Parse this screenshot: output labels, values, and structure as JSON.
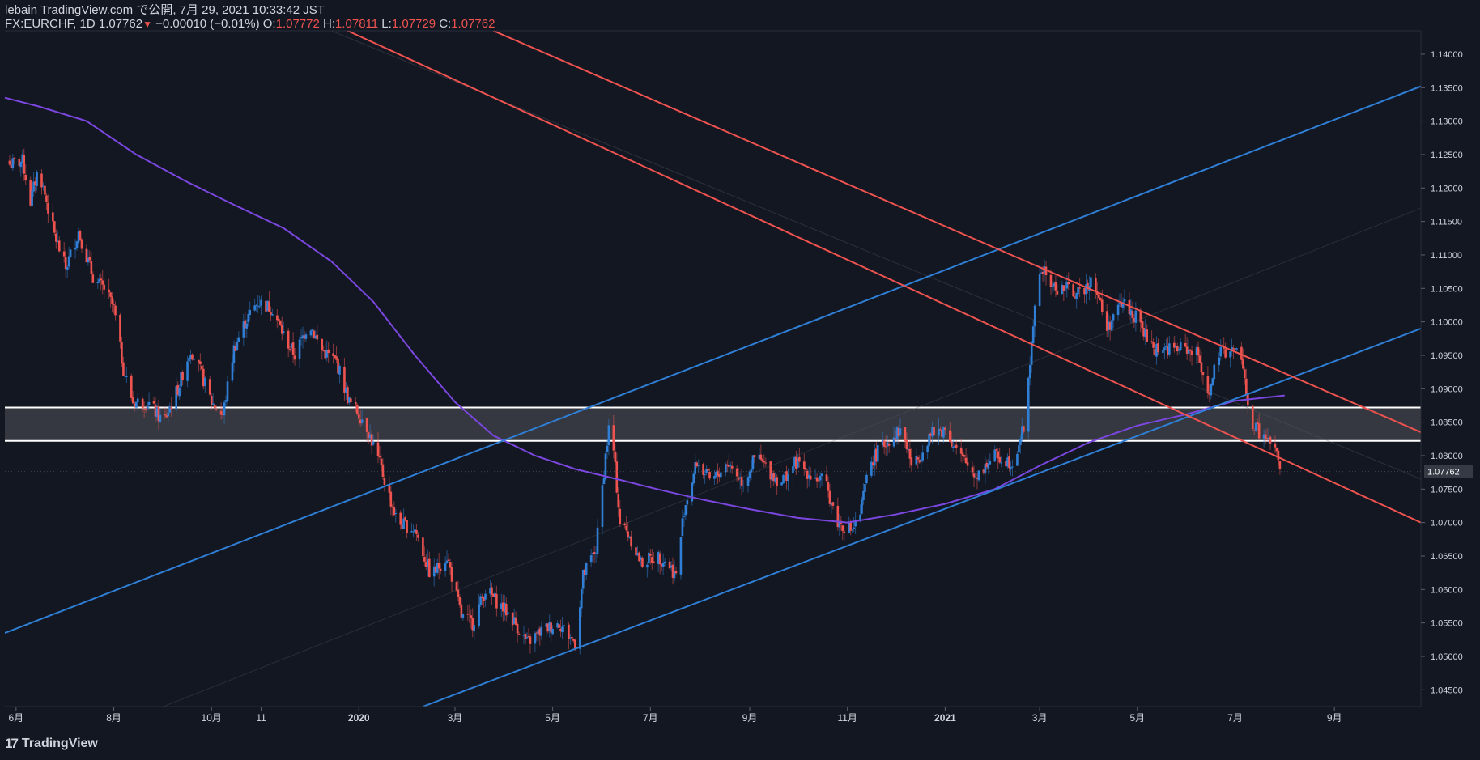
{
  "header": {
    "publisher_line": "lebain TradingView.com で公開, 7月 29, 2021 10:33:42 JST",
    "symbol": "FX:EURCHF, 1D",
    "last": "1.07762",
    "change": "−0.00010 (−0.01%)",
    "o_label": "O:",
    "o_value": "1.07772",
    "h_label": "H:",
    "h_value": "1.07811",
    "l_label": "L:",
    "l_value": "1.07729",
    "c_label": "C:",
    "c_value": "1.07762"
  },
  "footer": {
    "brand": "TradingView",
    "logo_glyph": "17"
  },
  "colors": {
    "background": "#131722",
    "up": "#2f7fd6",
    "down": "#ef5350",
    "ma": "#7b47e0",
    "trend_blue": "#2f7fd6",
    "trend_red": "#ef5350",
    "zone_fill": "#3a3c44",
    "zone_line": "#ffffff",
    "axis_text": "#d1d4dc",
    "price_tag_bg": "#363a45"
  },
  "chart_data": {
    "type": "candlestick",
    "symbol": "FX:EURCHF",
    "interval": "1D",
    "ylim": [
      1.0425,
      1.1435
    ],
    "y_ticks": [
      1.045,
      1.05,
      1.055,
      1.06,
      1.065,
      1.07,
      1.075,
      1.08,
      1.085,
      1.09,
      1.095,
      1.1,
      1.105,
      1.11,
      1.115,
      1.12,
      1.125,
      1.13,
      1.135,
      1.14
    ],
    "y_tick_labels": [
      "1.04500",
      "1.05000",
      "1.05500",
      "1.06000",
      "1.06500",
      "1.07000",
      "1.07500",
      "1.08000",
      "1.08500",
      "1.09000",
      "1.09500",
      "1.10000",
      "1.10500",
      "1.11000",
      "1.11500",
      "1.12000",
      "1.12500",
      "1.13000",
      "1.13500",
      "1.14000"
    ],
    "x_domain": [
      "2019-05-25",
      "2021-10-25"
    ],
    "x_ticks": [
      {
        "date": "2019-06-01",
        "label": "6月"
      },
      {
        "date": "2019-08-01",
        "label": "8月"
      },
      {
        "date": "2019-10-01",
        "label": "10月"
      },
      {
        "date": "2019-11-01",
        "label": "11"
      },
      {
        "date": "2020-01-01",
        "label": "2020"
      },
      {
        "date": "2020-03-01",
        "label": "3月"
      },
      {
        "date": "2020-05-01",
        "label": "5月"
      },
      {
        "date": "2020-07-01",
        "label": "7月"
      },
      {
        "date": "2020-09-01",
        "label": "9月"
      },
      {
        "date": "2020-11-01",
        "label": "11月"
      },
      {
        "date": "2021-01-01",
        "label": "2021"
      },
      {
        "date": "2021-03-01",
        "label": "3月"
      },
      {
        "date": "2021-05-01",
        "label": "5月"
      },
      {
        "date": "2021-07-01",
        "label": "7月"
      },
      {
        "date": "2021-09-01",
        "label": "9月"
      }
    ],
    "last_price": 1.07762,
    "last_price_label": "1.07762",
    "price_path": [
      [
        "2019-05-28",
        1.1235
      ],
      [
        "2019-06-05",
        1.124
      ],
      [
        "2019-06-10",
        1.118
      ],
      [
        "2019-06-15",
        1.123
      ],
      [
        "2019-06-25",
        1.113
      ],
      [
        "2019-07-02",
        1.108
      ],
      [
        "2019-07-10",
        1.1135
      ],
      [
        "2019-07-20",
        1.106
      ],
      [
        "2019-07-26",
        1.105
      ],
      [
        "2019-08-01",
        1.102
      ],
      [
        "2019-08-07",
        1.093
      ],
      [
        "2019-08-13",
        1.088
      ],
      [
        "2019-08-22",
        1.088
      ],
      [
        "2019-09-01",
        1.085
      ],
      [
        "2019-09-10",
        1.09
      ],
      [
        "2019-09-18",
        1.096
      ],
      [
        "2019-09-25",
        1.092
      ],
      [
        "2019-10-01",
        1.088
      ],
      [
        "2019-10-08",
        1.086
      ],
      [
        "2019-10-15",
        1.096
      ],
      [
        "2019-10-22",
        1.1
      ],
      [
        "2019-10-30",
        1.103
      ],
      [
        "2019-11-08",
        1.102
      ],
      [
        "2019-11-15",
        1.098
      ],
      [
        "2019-11-22",
        1.095
      ],
      [
        "2019-12-01",
        1.1
      ],
      [
        "2019-12-08",
        1.096
      ],
      [
        "2019-12-18",
        1.094
      ],
      [
        "2019-12-26",
        1.088
      ],
      [
        "2020-01-05",
        1.085
      ],
      [
        "2020-01-15",
        1.078
      ],
      [
        "2020-01-25",
        1.07
      ],
      [
        "2020-02-05",
        1.069
      ],
      [
        "2020-02-15",
        1.062
      ],
      [
        "2020-02-25",
        1.065
      ],
      [
        "2020-03-05",
        1.056
      ],
      [
        "2020-03-12",
        1.055
      ],
      [
        "2020-03-20",
        1.06
      ],
      [
        "2020-03-28",
        1.058
      ],
      [
        "2020-04-05",
        1.056
      ],
      [
        "2020-04-15",
        1.052
      ],
      [
        "2020-04-25",
        1.054
      ],
      [
        "2020-05-05",
        1.055
      ],
      [
        "2020-05-15",
        1.052
      ],
      [
        "2020-05-20",
        1.062
      ],
      [
        "2020-05-28",
        1.066
      ],
      [
        "2020-06-03",
        1.08
      ],
      [
        "2020-06-06",
        1.086
      ],
      [
        "2020-06-12",
        1.07
      ],
      [
        "2020-06-18",
        1.068
      ],
      [
        "2020-06-25",
        1.064
      ],
      [
        "2020-07-05",
        1.065
      ],
      [
        "2020-07-12",
        1.064
      ],
      [
        "2020-07-17",
        1.062
      ],
      [
        "2020-07-22",
        1.072
      ],
      [
        "2020-07-30",
        1.079
      ],
      [
        "2020-08-08",
        1.076
      ],
      [
        "2020-08-18",
        1.079
      ],
      [
        "2020-08-28",
        1.076
      ],
      [
        "2020-09-05",
        1.08
      ],
      [
        "2020-09-12",
        1.078
      ],
      [
        "2020-09-20",
        1.076
      ],
      [
        "2020-09-30",
        1.079
      ],
      [
        "2020-10-10",
        1.077
      ],
      [
        "2020-10-18",
        1.076
      ],
      [
        "2020-10-26",
        1.07
      ],
      [
        "2020-11-03",
        1.069
      ],
      [
        "2020-11-08",
        1.07
      ],
      [
        "2020-11-15",
        1.079
      ],
      [
        "2020-11-25",
        1.082
      ],
      [
        "2020-12-05",
        1.084
      ],
      [
        "2020-12-12",
        1.078
      ],
      [
        "2020-12-22",
        1.083
      ],
      [
        "2021-01-01",
        1.084
      ],
      [
        "2021-01-10",
        1.08
      ],
      [
        "2021-01-20",
        1.077
      ],
      [
        "2021-02-01",
        1.08
      ],
      [
        "2021-02-12",
        1.079
      ],
      [
        "2021-02-20",
        1.085
      ],
      [
        "2021-02-25",
        1.1
      ],
      [
        "2021-03-02",
        1.108
      ],
      [
        "2021-03-10",
        1.105
      ],
      [
        "2021-03-18",
        1.105
      ],
      [
        "2021-03-26",
        1.104
      ],
      [
        "2021-04-03",
        1.107
      ],
      [
        "2021-04-12",
        1.099
      ],
      [
        "2021-04-22",
        1.103
      ],
      [
        "2021-05-02",
        1.1
      ],
      [
        "2021-05-10",
        1.096
      ],
      [
        "2021-05-20",
        1.096
      ],
      [
        "2021-06-01",
        1.096
      ],
      [
        "2021-06-08",
        1.095
      ],
      [
        "2021-06-15",
        1.089
      ],
      [
        "2021-06-20",
        1.095
      ],
      [
        "2021-06-28",
        1.096
      ],
      [
        "2021-07-05",
        1.095
      ],
      [
        "2021-07-10",
        1.085
      ],
      [
        "2021-07-18",
        1.083
      ],
      [
        "2021-07-26",
        1.081
      ],
      [
        "2021-07-29",
        1.07762
      ]
    ],
    "moving_average": [
      [
        "2019-05-25",
        1.1335
      ],
      [
        "2019-06-15",
        1.1322
      ],
      [
        "2019-07-15",
        1.13
      ],
      [
        "2019-08-15",
        1.125
      ],
      [
        "2019-09-15",
        1.121
      ],
      [
        "2019-10-15",
        1.1175
      ],
      [
        "2019-11-15",
        1.114
      ],
      [
        "2019-12-15",
        1.109
      ],
      [
        "2020-01-10",
        1.103
      ],
      [
        "2020-02-05",
        1.095
      ],
      [
        "2020-03-01",
        1.088
      ],
      [
        "2020-03-25",
        1.083
      ],
      [
        "2020-04-20",
        1.08
      ],
      [
        "2020-05-15",
        1.078
      ],
      [
        "2020-06-10",
        1.0765
      ],
      [
        "2020-07-05",
        1.075
      ],
      [
        "2020-08-01",
        1.0735
      ],
      [
        "2020-09-01",
        1.072
      ],
      [
        "2020-10-01",
        1.0707
      ],
      [
        "2020-11-01",
        1.07
      ],
      [
        "2020-12-01",
        1.0712
      ],
      [
        "2021-01-01",
        1.0728
      ],
      [
        "2021-02-01",
        1.075
      ],
      [
        "2021-03-01",
        1.0785
      ],
      [
        "2021-04-01",
        1.082
      ],
      [
        "2021-05-01",
        1.0845
      ],
      [
        "2021-06-01",
        1.0862
      ],
      [
        "2021-07-01",
        1.0882
      ],
      [
        "2021-08-01",
        1.089
      ]
    ],
    "trendlines": [
      {
        "name": "blue-upper",
        "color": "blue",
        "from": [
          "2019-05-25",
          1.0535
        ],
        "to": [
          "2021-10-25",
          1.1352
        ]
      },
      {
        "name": "blue-lower",
        "color": "blue",
        "from": [
          "2020-02-10",
          1.0425
        ],
        "to": [
          "2021-10-25",
          1.099
        ]
      },
      {
        "name": "red-lower",
        "color": "red",
        "from": [
          "2019-12-25",
          1.1435
        ],
        "to": [
          "2021-10-25",
          1.07
        ]
      },
      {
        "name": "red-upper",
        "color": "red",
        "from": [
          "2020-03-25",
          1.1435
        ],
        "to": [
          "2021-10-25",
          1.0835
        ]
      }
    ],
    "zone": {
      "low": 1.0822,
      "high": 1.0872
    },
    "grid": false,
    "legend": "none"
  }
}
